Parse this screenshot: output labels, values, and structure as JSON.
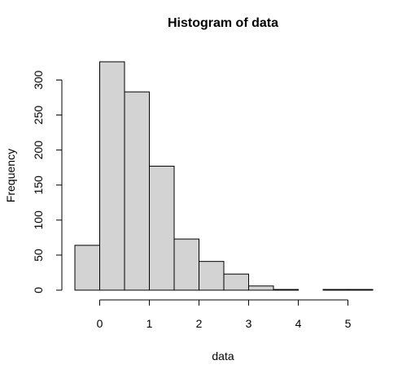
{
  "chart_data": {
    "type": "bar",
    "title": "Histogram of data",
    "xlabel": "data",
    "ylabel": "Frequency",
    "bin_width": 0.5,
    "bins": [
      {
        "start": -0.5,
        "end": 0.0,
        "count": 64
      },
      {
        "start": 0.0,
        "end": 0.5,
        "count": 326
      },
      {
        "start": 0.5,
        "end": 1.0,
        "count": 283
      },
      {
        "start": 1.0,
        "end": 1.5,
        "count": 177
      },
      {
        "start": 1.5,
        "end": 2.0,
        "count": 73
      },
      {
        "start": 2.0,
        "end": 2.5,
        "count": 41
      },
      {
        "start": 2.5,
        "end": 3.0,
        "count": 23
      },
      {
        "start": 3.0,
        "end": 3.5,
        "count": 6
      },
      {
        "start": 3.5,
        "end": 4.0,
        "count": 1
      },
      {
        "start": 4.0,
        "end": 4.5,
        "count": 0
      },
      {
        "start": 4.5,
        "end": 5.0,
        "count": 1
      },
      {
        "start": 5.0,
        "end": 5.5,
        "count": 1
      }
    ],
    "xlim": [
      -0.5,
      5.5
    ],
    "ylim": [
      0,
      326
    ],
    "x_ticks": [
      0,
      1,
      2,
      3,
      4,
      5
    ],
    "y_ticks": [
      0,
      50,
      100,
      150,
      200,
      250,
      300
    ],
    "bar_fill": "#d3d3d3",
    "bar_stroke": "#000000",
    "grid": false
  }
}
